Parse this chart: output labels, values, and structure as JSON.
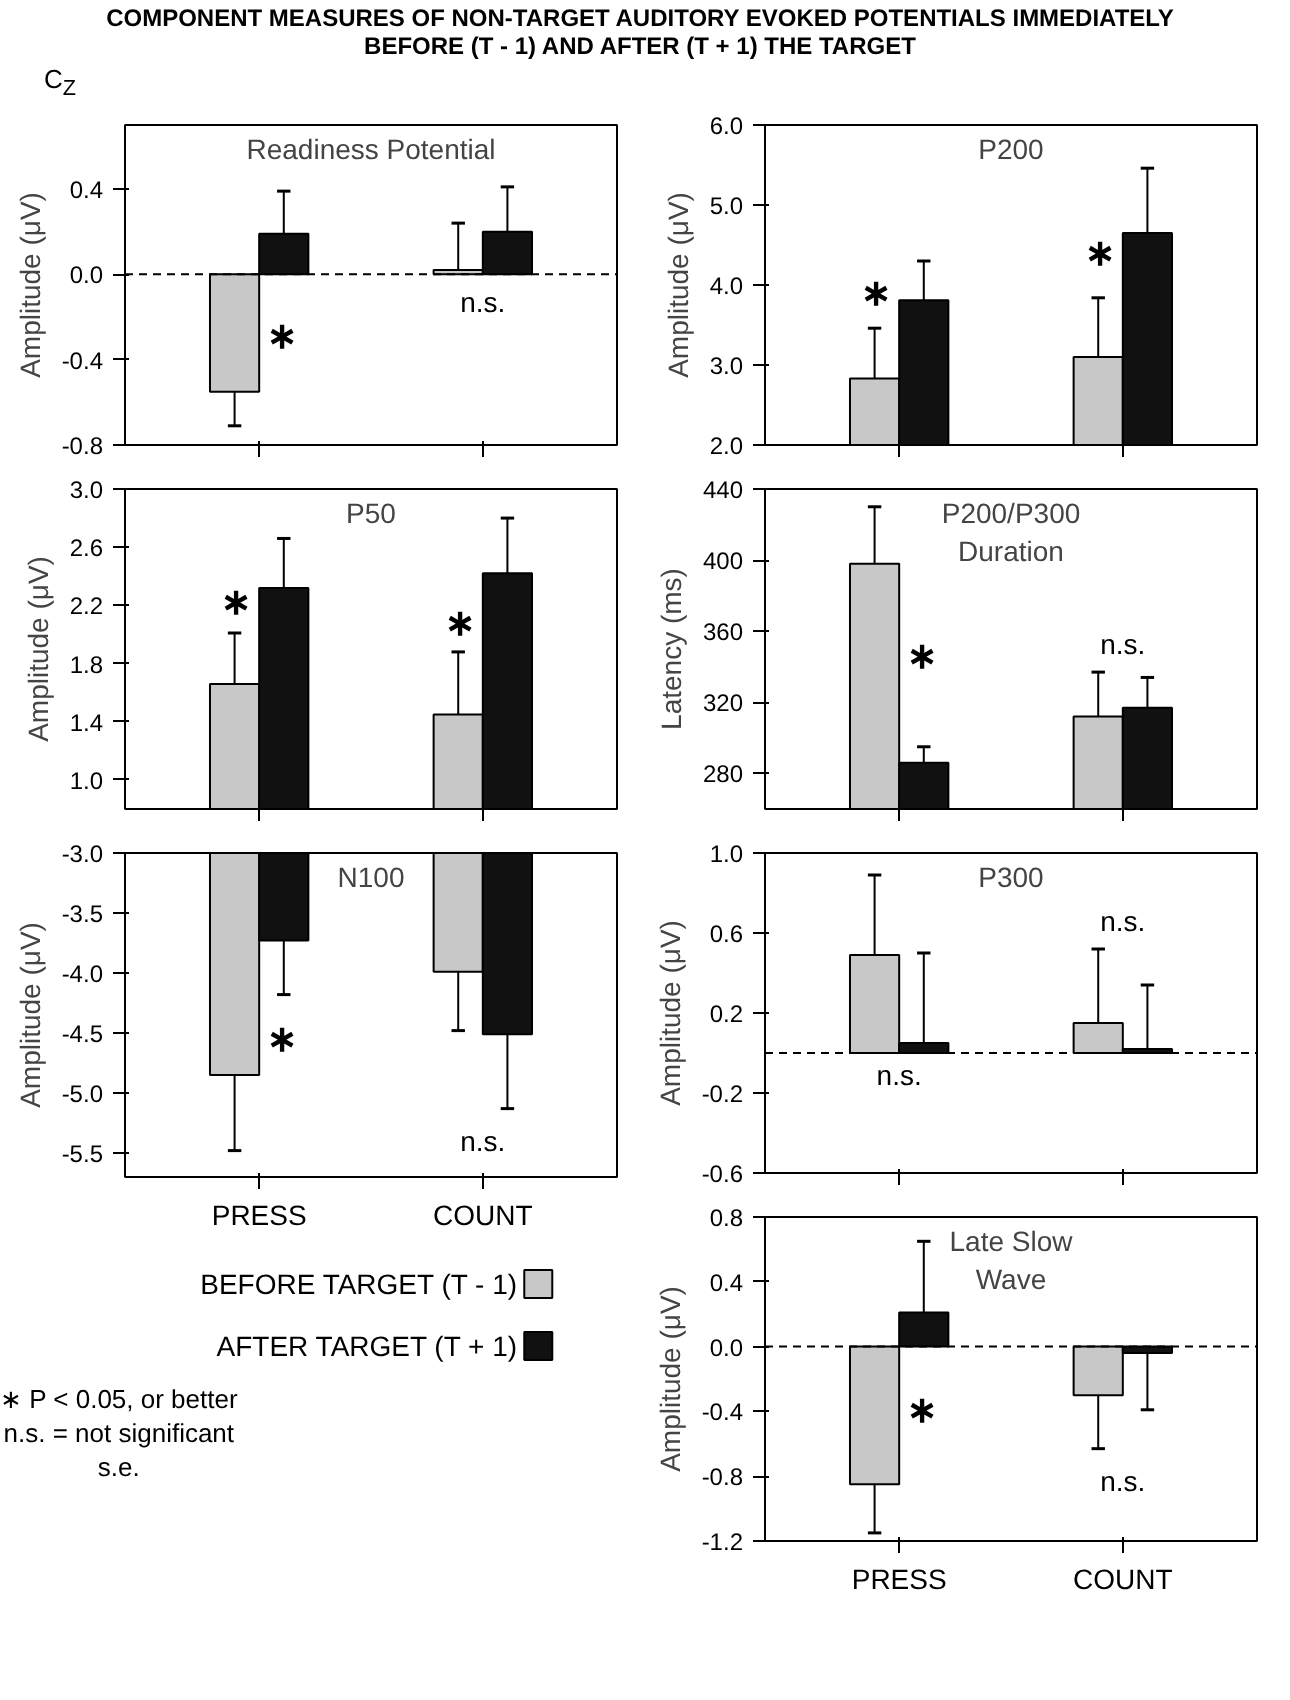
{
  "chart_data": [
    {
      "type": "other",
      "title": "COMPONENT MEASURES OF NON-TARGET AUDITORY EVOKED POTENTIALS IMMEDIATELY BEFORE (T - 1) AND AFTER (T + 1) THE TARGET",
      "subtitle": "C$_{Z}$"
    },
    {
      "type": "bar",
      "title": "Readiness Potential",
      "ylabel": "Amplitude (μV)",
      "categories": [
        "PRESS",
        "COUNT"
      ],
      "ylim": [
        -0.8,
        0.7
      ],
      "yticks": [
        {
          "value": -0.8,
          "label": "-0.8"
        },
        {
          "value": -0.4,
          "label": "-0.4"
        },
        {
          "value": 0,
          "label": "0.0"
        },
        0.4
      ],
      "tick_labels": "y",
      "series": [
        {
          "color": "#c8c8c8",
          "values": [
            -0.55,
            0.02
          ],
          "errors": [
            [
              -0.71,
              -0.55
            ],
            [
              0.02,
              0.24
            ]
          ]
        },
        {
          "color": "#111111",
          "values": [
            0.19,
            0.2
          ],
          "errors": [
            [
              0.19,
              0.39
            ],
            [
              0.2,
              0.41
            ]
          ]
        }
      ],
      "ref_lines": [
        {
          "axis": "y",
          "value": 0,
          "line_style": "dashed"
        }
      ],
      "annotations": [
        {
          "text": "∗",
          "x": "PRESS",
          "y": -0.29
        },
        "n.s."
      ]
    },
    {
      "type": "bar",
      "title": "P200",
      "ylabel": "Amplitude (μV)",
      "categories": [
        "PRESS",
        "COUNT"
      ],
      "ylim": [
        2.0,
        6.0
      ],
      "yticks": [
        {
          "value": 2,
          "label": "2.0"
        },
        {
          "value": 3,
          "label": "3.0"
        },
        {
          "value": 4,
          "label": "4.0"
        },
        {
          "value": 5,
          "label": "5.0"
        },
        {
          "value": 6,
          "label": "6.0"
        }
      ],
      "tick_labels": "y",
      "series": [
        {
          "color": "#c8c8c8",
          "values": [
            2.83,
            3.1
          ],
          "errors": [
            [
              2.83,
              3.46
            ],
            [
              3.1,
              3.84
            ]
          ]
        },
        {
          "color": "#111111",
          "values": [
            3.81,
            4.65
          ],
          "errors": [
            [
              3.81,
              4.3
            ],
            [
              4.65,
              5.46
            ]
          ]
        }
      ],
      "annotations": [
        {
          "text": "∗",
          "x": "PRESS",
          "y": 3.9
        },
        {
          "text": "∗",
          "x": "COUNT",
          "y": 4.4
        }
      ]
    },
    {
      "type": "bar",
      "title": "P50",
      "ylabel": "Amplitude (μV)",
      "categories": [
        "PRESS",
        "COUNT"
      ],
      "ylim": [
        0.8,
        3.0
      ],
      "yticks": [
        {
          "value": 1,
          "label": "1.0"
        },
        1.4,
        1.8,
        2.2,
        2.6,
        {
          "value": 3,
          "label": "3.0"
        }
      ],
      "tick_labels": "y",
      "series": [
        {
          "color": "#c8c8c8",
          "values": [
            1.66,
            1.45
          ],
          "errors": [
            [
              1.66,
              2.01
            ],
            [
              1.45,
              1.88
            ]
          ]
        },
        {
          "color": "#111111",
          "values": [
            2.32,
            2.42
          ],
          "errors": [
            [
              2.32,
              2.66
            ],
            [
              2.42,
              2.8
            ]
          ]
        }
      ],
      "annotations": [
        {
          "text": "∗",
          "x": "PRESS",
          "y": 2.22
        },
        {
          "text": "∗",
          "x": "COUNT",
          "y": 2.08
        }
      ]
    },
    {
      "type": "bar",
      "title": "P200/P300\nDuration",
      "ylabel": "Latency (ms)",
      "categories": [
        "PRESS",
        "COUNT"
      ],
      "ylim": [
        260,
        440
      ],
      "yticks": [
        280,
        320,
        360,
        400,
        440
      ],
      "tick_labels": "y",
      "series": [
        {
          "color": "#c8c8c8",
          "values": [
            398,
            312
          ],
          "errors": [
            [
              398,
              430
            ],
            [
              312,
              337
            ]
          ]
        },
        {
          "color": "#111111",
          "values": [
            286,
            317
          ],
          "errors": [
            [
              286,
              295
            ],
            [
              317,
              334
            ]
          ]
        }
      ],
      "annotations": [
        {
          "text": "∗",
          "x": "PRESS",
          "y": 346
        },
        "n.s."
      ]
    },
    {
      "type": "bar",
      "title": "N100",
      "ylabel": "Amplitude (μV)",
      "categories": [
        "PRESS",
        "COUNT"
      ],
      "ylim": [
        -5.7,
        -3.0
      ],
      "yticks": [
        -5.5,
        {
          "value": -5,
          "label": "-5.0"
        },
        -4.5,
        {
          "value": -4,
          "label": "-4.0"
        },
        -3.5,
        {
          "value": -3,
          "label": "-3.0"
        }
      ],
      "legend": "bottom",
      "series": [
        {
          "name": "BEFORE TARGET (T - 1)",
          "color": "#c8c8c8",
          "values": [
            -4.85,
            -3.99
          ],
          "errors": [
            [
              -5.48,
              -4.85
            ],
            [
              -4.48,
              -3.99
            ]
          ]
        },
        {
          "name": "AFTER TARGET (T + 1)",
          "color": "#111111",
          "values": [
            -3.73,
            -4.51
          ],
          "errors": [
            [
              -4.18,
              -3.73
            ],
            [
              -5.13,
              -4.51
            ]
          ]
        }
      ],
      "annotations": [
        {
          "text": "∗",
          "x": "PRESS",
          "y": -4.55
        },
        "n.s."
      ]
    },
    {
      "type": "bar",
      "title": "P300",
      "ylabel": "Amplitude (μV)",
      "categories": [
        "PRESS",
        "COUNT"
      ],
      "ylim": [
        -0.6,
        1.0
      ],
      "yticks": [
        -0.6,
        -0.2,
        0.2,
        0.6,
        {
          "value": 1,
          "label": "1.0"
        }
      ],
      "tick_labels": "y",
      "series": [
        {
          "color": "#c8c8c8",
          "values": [
            0.49,
            0.15
          ],
          "errors": [
            [
              0.49,
              0.89
            ],
            [
              0.15,
              0.52
            ]
          ]
        },
        {
          "color": "#111111",
          "values": [
            0.05,
            0.02
          ],
          "errors": [
            [
              0.05,
              0.5
            ],
            [
              0.02,
              0.34
            ]
          ]
        }
      ],
      "ref_lines": [
        {
          "axis": "y",
          "value": 0,
          "line_style": "dashed"
        }
      ],
      "annotations": [
        "n.s.",
        "n.s."
      ]
    },
    {
      "type": "bar",
      "title": "Late Slow\nWave",
      "ylabel": "Amplitude (μV)",
      "categories": [
        "PRESS",
        "COUNT"
      ],
      "ylim": [
        -1.2,
        0.8
      ],
      "yticks": [
        -1.2,
        -0.8,
        -0.4,
        {
          "value": 0,
          "label": "0.0"
        },
        0.4,
        0.8
      ],
      "series": [
        {
          "color": "#c8c8c8",
          "values": [
            -0.85,
            -0.3
          ],
          "errors": [
            [
              -1.15,
              -0.85
            ],
            [
              -0.63,
              -0.3
            ]
          ]
        },
        {
          "color": "#111111",
          "values": [
            0.21,
            -0.04
          ],
          "errors": [
            [
              0.21,
              0.65
            ],
            [
              -0.39,
              -0.04
            ]
          ]
        }
      ],
      "ref_lines": [
        {
          "axis": "y",
          "value": 0,
          "line_style": "dashed"
        }
      ],
      "annotations": [
        {
          "text": "∗",
          "x": "PRESS",
          "y": -0.39
        },
        "n.s."
      ]
    },
    {
      "type": "other",
      "annotations": [
        "∗ P < 0.05, or better",
        "n.s. = not significant",
        "s.e."
      ]
    }
  ]
}
